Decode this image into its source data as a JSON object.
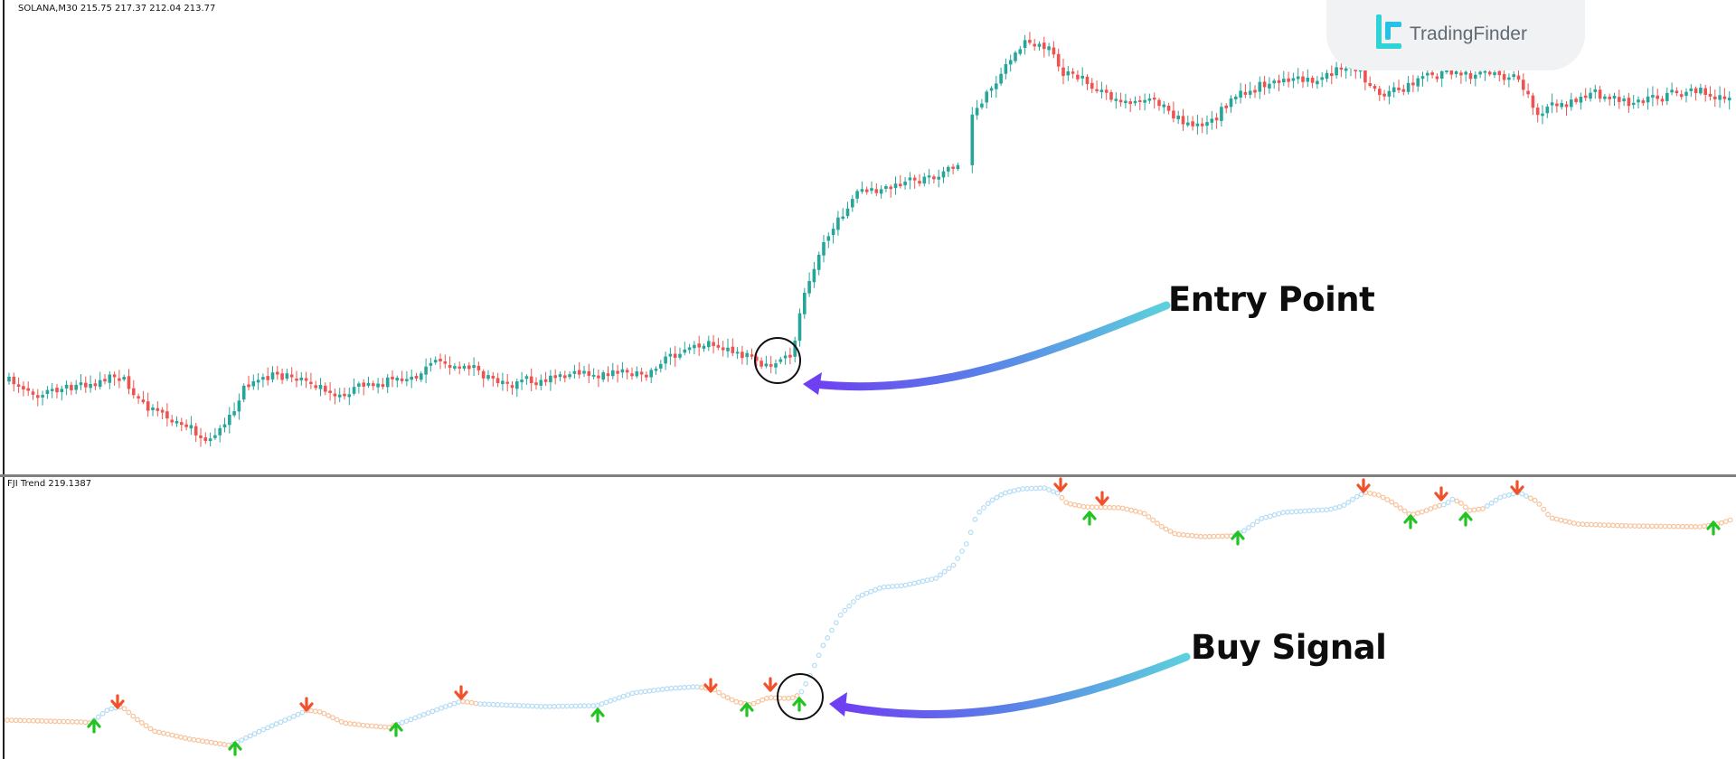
{
  "symbol_info": "SOLANA,M30   215.75 217.37 212.04 213.77",
  "indicator_info": "FJI Trend 219.1387",
  "annotations": {
    "entry_point": "Entry Point",
    "buy_signal": "Buy Signal"
  },
  "brand": {
    "name": "TradingFinder",
    "logo_icon": "tradingfinder-logo-icon"
  },
  "colors": {
    "bull_candle": "#26a69a",
    "bear_candle": "#ef5350",
    "uptrend_dots": "#b3dcf5",
    "downtrend_dots": "#f7c29a",
    "buy_arrow": "#22c322",
    "sell_arrow": "#f0502a",
    "annotation_arrow_start": "#6f3ff2",
    "annotation_arrow_end": "#5cd0dc"
  },
  "icons": {
    "buy": "up-arrow-icon",
    "sell": "down-arrow-icon",
    "highlight": "circle-marker-icon"
  }
}
